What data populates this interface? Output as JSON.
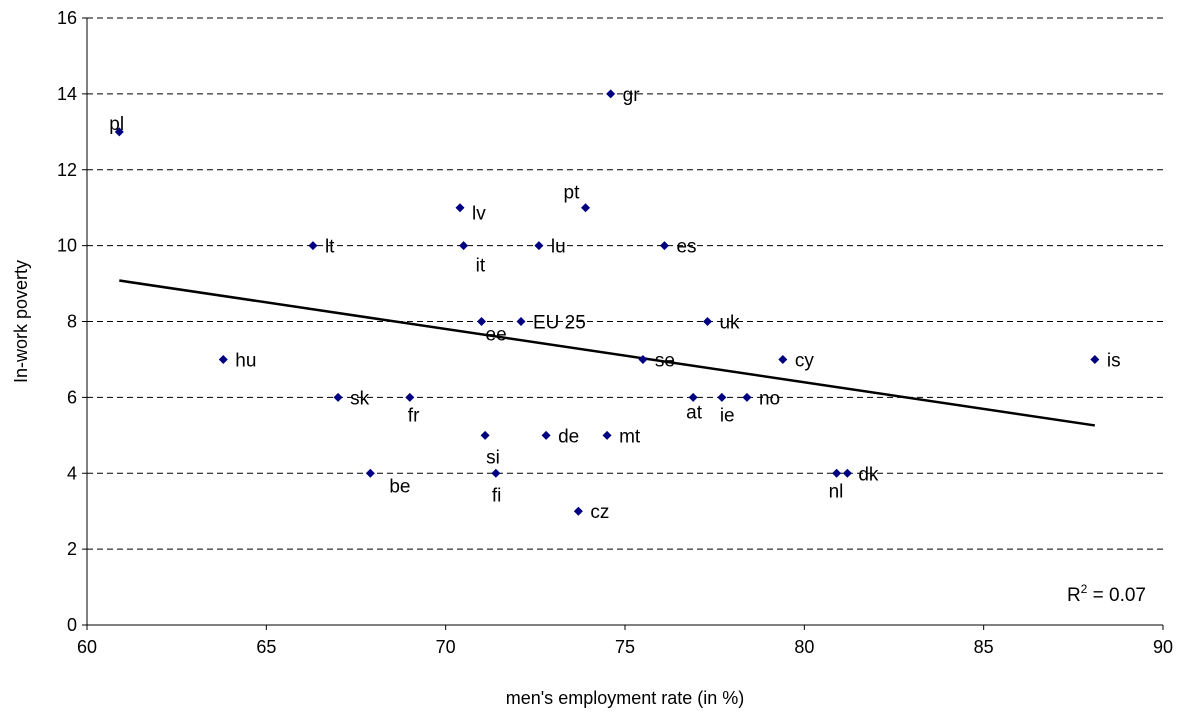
{
  "chart_data": {
    "type": "scatter",
    "xlabel": "men's employment rate (in %)",
    "ylabel": "In-work poverty",
    "xlim": [
      60,
      90
    ],
    "ylim": [
      0,
      16
    ],
    "x_ticks": [
      60,
      65,
      70,
      75,
      80,
      85,
      90
    ],
    "y_ticks": [
      0,
      2,
      4,
      6,
      8,
      10,
      12,
      14,
      16
    ],
    "grid": "horizontal dashed",
    "marker_color": "#000080",
    "points": [
      {
        "label": "pl",
        "x": 60.9,
        "y": 13
      },
      {
        "label": "gr",
        "x": 74.6,
        "y": 14
      },
      {
        "label": "lv",
        "x": 70.4,
        "y": 11
      },
      {
        "label": "pt",
        "x": 73.9,
        "y": 11
      },
      {
        "label": "lt",
        "x": 66.3,
        "y": 10
      },
      {
        "label": "it",
        "x": 70.5,
        "y": 10
      },
      {
        "label": "lu",
        "x": 72.6,
        "y": 10
      },
      {
        "label": "es",
        "x": 76.1,
        "y": 10
      },
      {
        "label": "ee",
        "x": 71.0,
        "y": 8
      },
      {
        "label": "EU 25",
        "x": 72.1,
        "y": 8
      },
      {
        "label": "uk",
        "x": 77.3,
        "y": 8
      },
      {
        "label": "hu",
        "x": 63.8,
        "y": 7
      },
      {
        "label": "se",
        "x": 75.5,
        "y": 7
      },
      {
        "label": "cy",
        "x": 79.4,
        "y": 7
      },
      {
        "label": "is",
        "x": 88.1,
        "y": 7
      },
      {
        "label": "sk",
        "x": 67.0,
        "y": 6
      },
      {
        "label": "fr",
        "x": 69.0,
        "y": 6
      },
      {
        "label": "at",
        "x": 76.9,
        "y": 6
      },
      {
        "label": "ie",
        "x": 77.7,
        "y": 6
      },
      {
        "label": "no",
        "x": 78.4,
        "y": 6
      },
      {
        "label": "si",
        "x": 71.1,
        "y": 5
      },
      {
        "label": "de",
        "x": 72.8,
        "y": 5
      },
      {
        "label": "mt",
        "x": 74.5,
        "y": 5
      },
      {
        "label": "be",
        "x": 67.9,
        "y": 4
      },
      {
        "label": "fi",
        "x": 71.4,
        "y": 4
      },
      {
        "label": "nl",
        "x": 80.9,
        "y": 4
      },
      {
        "label": "dk",
        "x": 81.2,
        "y": 4
      },
      {
        "label": "cz",
        "x": 73.7,
        "y": 3
      }
    ],
    "trendline": {
      "x1": 60.9,
      "y1": 9.08,
      "x2": 88.1,
      "y2": 5.26
    },
    "r_squared_text": {
      "prefix": "R",
      "sup": "2",
      "suffix": " = 0.07"
    }
  }
}
